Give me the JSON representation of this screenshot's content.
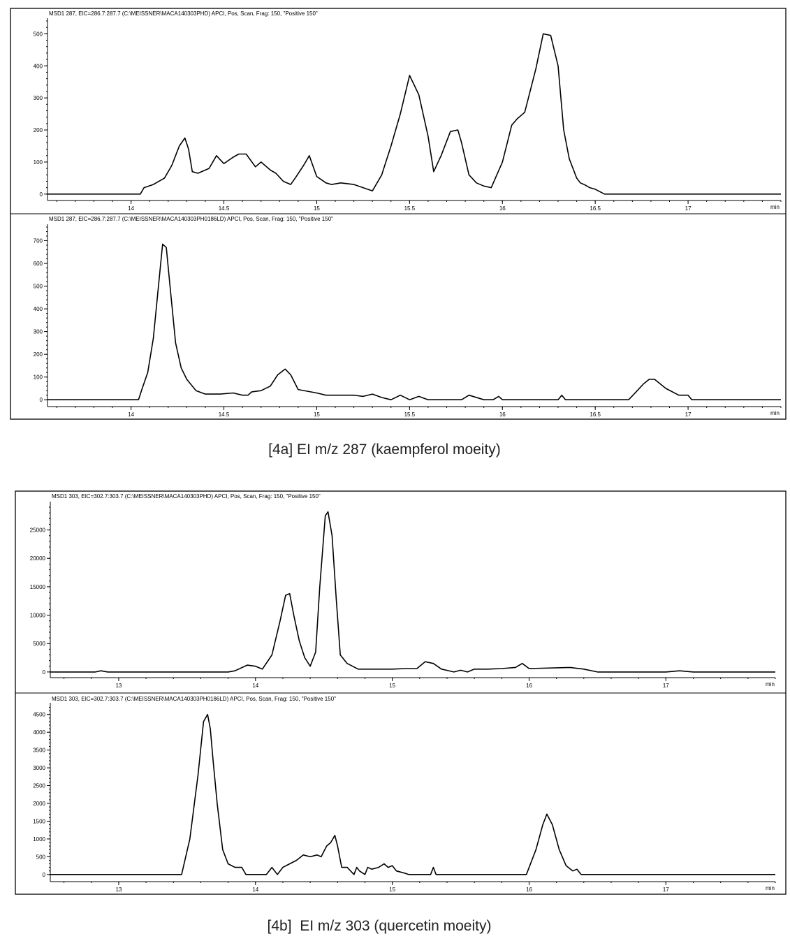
{
  "figures": [
    {
      "caption": "[4a] EI m/z 287 (kaempferol moeity)"
    },
    {
      "caption": "[4b]  EI m/z 303 (quercetin moeity)"
    }
  ],
  "chart_data": [
    {
      "type": "line",
      "header": "MSD1 287, EIC=286.7:287.7 (C:\\MEISSNER\\MACA140303PHD)    APCI, Pos, Scan, Frag: 150, \"Positive 150\"",
      "x_unit": "min",
      "xlim": [
        13.55,
        17.5
      ],
      "xticks": [
        14,
        14.5,
        15,
        15.5,
        16,
        16.5,
        17
      ],
      "xtick_labels": [
        "14",
        "14.5",
        "15",
        "15.5",
        "16",
        "16.5",
        "17"
      ],
      "ylim": [
        -20,
        540
      ],
      "yticks": [
        0,
        100,
        200,
        300,
        400,
        500
      ],
      "ytick_labels": [
        "0",
        "100",
        "200",
        "300",
        "400",
        "500"
      ],
      "series": [
        {
          "x": [
            13.55,
            14.05,
            14.07,
            14.12,
            14.18,
            14.22,
            14.26,
            14.29,
            14.31,
            14.33,
            14.36,
            14.42,
            14.46,
            14.5,
            14.55,
            14.58,
            14.62,
            14.67,
            14.7,
            14.75,
            14.78,
            14.82,
            14.86,
            14.89,
            14.93,
            14.96,
            15.0,
            15.05,
            15.08,
            15.13,
            15.2,
            15.3,
            15.35,
            15.4,
            15.45,
            15.5,
            15.55,
            15.6,
            15.63,
            15.67,
            15.72,
            15.76,
            15.78,
            15.82,
            15.86,
            15.9,
            15.94,
            16.0,
            16.05,
            16.08,
            16.12,
            16.18,
            16.22,
            16.26,
            16.3,
            16.33,
            16.36,
            16.4,
            16.42,
            16.44,
            16.47,
            16.5,
            16.55,
            16.6,
            16.65,
            16.68,
            16.7,
            17.5
          ],
          "y": [
            0,
            0,
            20,
            30,
            50,
            90,
            150,
            175,
            140,
            70,
            65,
            80,
            120,
            95,
            115,
            125,
            125,
            85,
            100,
            75,
            65,
            40,
            30,
            55,
            90,
            120,
            55,
            35,
            30,
            35,
            30,
            10,
            60,
            150,
            250,
            370,
            310,
            180,
            70,
            120,
            195,
            200,
            160,
            60,
            35,
            25,
            20,
            100,
            215,
            235,
            255,
            390,
            500,
            495,
            400,
            200,
            110,
            50,
            35,
            30,
            20,
            15,
            0,
            0,
            0,
            0,
            0,
            0
          ]
        }
      ]
    },
    {
      "type": "line",
      "header": "MSD1 287, EIC=286.7:287.7 (C:\\MEISSNER\\MACA140303PH0186LD)    APCI, Pos, Scan, Frag: 150, \"Positive 150\"",
      "x_unit": "min",
      "xlim": [
        13.55,
        17.5
      ],
      "xticks": [
        14,
        14.5,
        15,
        15.5,
        16,
        16.5,
        17
      ],
      "xtick_labels": [
        "14",
        "14.5",
        "15",
        "15.5",
        "16",
        "16.5",
        "17"
      ],
      "ylim": [
        -30,
        760
      ],
      "yticks": [
        0,
        100,
        200,
        300,
        400,
        500,
        600,
        700
      ],
      "ytick_labels": [
        "0",
        "100",
        "200",
        "300",
        "400",
        "500",
        "600",
        "700"
      ],
      "series": [
        {
          "x": [
            13.55,
            14.04,
            14.06,
            14.09,
            14.12,
            14.15,
            14.17,
            14.19,
            14.21,
            14.24,
            14.27,
            14.3,
            14.35,
            14.4,
            14.48,
            14.55,
            14.6,
            14.63,
            14.65,
            14.7,
            14.75,
            14.79,
            14.83,
            14.86,
            14.9,
            15.0,
            15.05,
            15.1,
            15.2,
            15.25,
            15.3,
            15.35,
            15.4,
            15.45,
            15.5,
            15.55,
            15.6,
            15.7,
            15.78,
            15.82,
            15.9,
            15.95,
            15.98,
            16.0,
            16.1,
            16.3,
            16.32,
            16.34,
            16.5,
            16.68,
            16.72,
            16.76,
            16.79,
            16.82,
            16.88,
            16.95,
            17.0,
            17.02,
            17.5
          ],
          "y": [
            0,
            0,
            50,
            120,
            270,
            520,
            685,
            670,
            500,
            250,
            140,
            90,
            40,
            25,
            25,
            30,
            20,
            20,
            35,
            40,
            60,
            110,
            135,
            110,
            45,
            30,
            20,
            20,
            20,
            15,
            25,
            10,
            0,
            20,
            0,
            15,
            0,
            0,
            0,
            20,
            0,
            0,
            15,
            0,
            0,
            0,
            20,
            0,
            0,
            0,
            35,
            70,
            90,
            90,
            50,
            20,
            20,
            0,
            0
          ]
        }
      ]
    },
    {
      "type": "line",
      "header": "MSD1 303, EIC=302.7:303.7 (C:\\MEISSNER\\MACA140303PHD)    APCI, Pos, Scan, Frag: 150, \"Positive 150\"",
      "x_unit": "min",
      "xlim": [
        12.5,
        17.8
      ],
      "xticks": [
        13,
        14,
        15,
        16,
        17
      ],
      "xtick_labels": [
        "13",
        "14",
        "15",
        "16",
        "17"
      ],
      "ylim": [
        -1000,
        29500
      ],
      "yticks": [
        0,
        5000,
        10000,
        15000,
        20000,
        25000
      ],
      "ytick_labels": [
        "0",
        "5000",
        "10000",
        "15000",
        "20000",
        "25000"
      ],
      "series": [
        {
          "x": [
            12.5,
            12.83,
            12.87,
            12.92,
            13.8,
            13.85,
            13.94,
            14.0,
            14.05,
            14.12,
            14.18,
            14.22,
            14.25,
            14.28,
            14.32,
            14.36,
            14.4,
            14.44,
            14.47,
            14.51,
            14.53,
            14.56,
            14.59,
            14.62,
            14.67,
            14.75,
            15.0,
            15.1,
            15.18,
            15.24,
            15.3,
            15.36,
            15.45,
            15.5,
            15.55,
            15.6,
            15.7,
            15.8,
            15.9,
            15.95,
            16.0,
            16.3,
            16.4,
            16.5,
            17.0,
            17.1,
            17.2,
            17.8
          ],
          "y": [
            0,
            0,
            200,
            0,
            0,
            200,
            1200,
            1000,
            500,
            3000,
            9000,
            13500,
            13800,
            10000,
            5500,
            2500,
            1000,
            3500,
            15000,
            27500,
            28200,
            24000,
            13000,
            3000,
            1500,
            500,
            500,
            600,
            600,
            1800,
            1500,
            500,
            0,
            300,
            0,
            500,
            500,
            600,
            800,
            1500,
            600,
            800,
            500,
            0,
            0,
            200,
            0,
            0
          ]
        }
      ]
    },
    {
      "type": "line",
      "header": "MSD1 303, EIC=302.7:303.7 (C:\\MEISSNER\\MACA140303PH0186LD)    APCI, Pos, Scan, Frag: 150, \"Positive 150\"",
      "x_unit": "min",
      "xlim": [
        12.5,
        17.8
      ],
      "xticks": [
        13,
        14,
        15,
        16,
        17
      ],
      "xtick_labels": [
        "13",
        "14",
        "15",
        "16",
        "17"
      ],
      "ylim": [
        -200,
        4750
      ],
      "yticks": [
        0,
        500,
        1000,
        1500,
        2000,
        2500,
        3000,
        3500,
        4000,
        4500
      ],
      "ytick_labels": [
        "0",
        "500",
        "1000",
        "1500",
        "2000",
        "2500",
        "3000",
        "3500",
        "4000",
        "4500"
      ],
      "series": [
        {
          "x": [
            12.5,
            13.46,
            13.52,
            13.58,
            13.62,
            13.65,
            13.67,
            13.69,
            13.72,
            13.76,
            13.8,
            13.85,
            13.9,
            13.93,
            14.08,
            14.12,
            14.16,
            14.2,
            14.25,
            14.3,
            14.35,
            14.4,
            14.45,
            14.48,
            14.52,
            14.55,
            14.58,
            14.6,
            14.63,
            14.67,
            14.72,
            14.74,
            14.76,
            14.8,
            14.82,
            14.85,
            14.9,
            14.94,
            14.97,
            15.0,
            15.03,
            15.08,
            15.12,
            15.28,
            15.3,
            15.32,
            15.98,
            16.05,
            16.1,
            16.13,
            16.17,
            16.22,
            16.27,
            16.32,
            16.35,
            16.38,
            17.8
          ],
          "y": [
            0,
            0,
            1000,
            2800,
            4300,
            4500,
            4100,
            3200,
            2000,
            700,
            300,
            200,
            200,
            0,
            0,
            200,
            0,
            200,
            300,
            400,
            550,
            500,
            550,
            500,
            800,
            900,
            1100,
            800,
            200,
            200,
            0,
            200,
            100,
            0,
            200,
            150,
            200,
            300,
            200,
            250,
            100,
            50,
            0,
            0,
            200,
            0,
            0,
            700,
            1400,
            1700,
            1400,
            700,
            250,
            100,
            150,
            0,
            0
          ]
        }
      ]
    }
  ]
}
